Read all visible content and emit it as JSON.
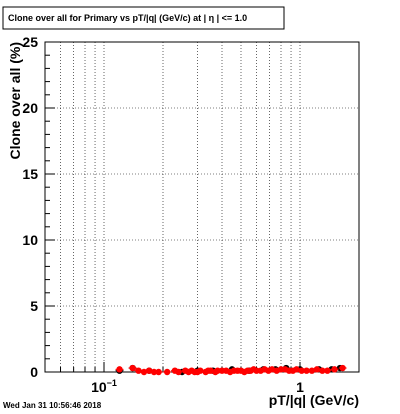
{
  "canvas": {
    "background": "#ffffff"
  },
  "title": {
    "text": "Clone  over all for Primary vs pT/|q| (GeV/c) at |  η | <= 1.0"
  },
  "timestamp": "Wed Jan 31 10:56:46 2018",
  "colors": {
    "primary": "#ff0000",
    "secondary": "#000000",
    "grid": "#000000"
  },
  "chart_data": {
    "type": "scatter",
    "title": "Clone  over all for Primary vs pT/|q| (GeV/c) at |  η | <= 1.0",
    "xlabel": "pT/|q| (GeV/c)",
    "ylabel": "Clone  over all (%)",
    "xscale": "log",
    "xlim": [
      0.05,
      2.0
    ],
    "ylim": [
      0,
      25
    ],
    "grid": true,
    "x_tick_labels": [
      {
        "value": 0.1,
        "label": "10",
        "exponent": "−1"
      },
      {
        "value": 1,
        "label": "1",
        "exponent": ""
      }
    ],
    "y_ticks": [
      {
        "value": 0,
        "label": "0"
      },
      {
        "value": 5,
        "label": "5"
      },
      {
        "value": 10,
        "label": "10"
      },
      {
        "value": 15,
        "label": "15"
      },
      {
        "value": 20,
        "label": "20"
      },
      {
        "value": 25,
        "label": "25"
      }
    ],
    "series": [
      {
        "color": "#000000",
        "marker": "circle",
        "points": [
          {
            "x": 0.12,
            "y": 0.1
          },
          {
            "x": 0.14,
            "y": 0.3
          },
          {
            "x": 0.17,
            "y": 0.1
          },
          {
            "x": 0.25,
            "y": 0.0
          },
          {
            "x": 0.3,
            "y": 0.1
          },
          {
            "x": 0.36,
            "y": 0.1
          },
          {
            "x": 0.45,
            "y": 0.2
          },
          {
            "x": 0.55,
            "y": 0.1
          },
          {
            "x": 0.65,
            "y": 0.2
          },
          {
            "x": 0.75,
            "y": 0.2
          },
          {
            "x": 0.85,
            "y": 0.3
          },
          {
            "x": 1.0,
            "y": 0.2
          },
          {
            "x": 1.25,
            "y": 0.2
          },
          {
            "x": 1.45,
            "y": 0.2
          },
          {
            "x": 1.6,
            "y": 0.3
          }
        ]
      },
      {
        "color": "#ff0000",
        "marker": "circle",
        "points": [
          {
            "x": 0.12,
            "y": 0.2
          },
          {
            "x": 0.14,
            "y": 0.3
          },
          {
            "x": 0.15,
            "y": 0.1
          },
          {
            "x": 0.16,
            "y": 0.0
          },
          {
            "x": 0.17,
            "y": 0.1
          },
          {
            "x": 0.18,
            "y": 0.0
          },
          {
            "x": 0.19,
            "y": 0.0
          },
          {
            "x": 0.21,
            "y": 0.0
          },
          {
            "x": 0.23,
            "y": 0.1
          },
          {
            "x": 0.24,
            "y": 0.0
          },
          {
            "x": 0.26,
            "y": 0.1
          },
          {
            "x": 0.27,
            "y": 0.0
          },
          {
            "x": 0.28,
            "y": 0.1
          },
          {
            "x": 0.29,
            "y": 0.0
          },
          {
            "x": 0.3,
            "y": 0.0
          },
          {
            "x": 0.31,
            "y": 0.1
          },
          {
            "x": 0.33,
            "y": 0.0
          },
          {
            "x": 0.34,
            "y": 0.1
          },
          {
            "x": 0.35,
            "y": 0.1
          },
          {
            "x": 0.37,
            "y": 0.0
          },
          {
            "x": 0.38,
            "y": 0.1
          },
          {
            "x": 0.4,
            "y": 0.1
          },
          {
            "x": 0.42,
            "y": 0.1
          },
          {
            "x": 0.44,
            "y": 0.0
          },
          {
            "x": 0.46,
            "y": 0.1
          },
          {
            "x": 0.48,
            "y": 0.1
          },
          {
            "x": 0.5,
            "y": 0.1
          },
          {
            "x": 0.52,
            "y": 0.0
          },
          {
            "x": 0.54,
            "y": 0.1
          },
          {
            "x": 0.56,
            "y": 0.1
          },
          {
            "x": 0.58,
            "y": 0.2
          },
          {
            "x": 0.6,
            "y": 0.1
          },
          {
            "x": 0.63,
            "y": 0.1
          },
          {
            "x": 0.66,
            "y": 0.2
          },
          {
            "x": 0.69,
            "y": 0.1
          },
          {
            "x": 0.72,
            "y": 0.2
          },
          {
            "x": 0.76,
            "y": 0.1
          },
          {
            "x": 0.8,
            "y": 0.2
          },
          {
            "x": 0.84,
            "y": 0.2
          },
          {
            "x": 0.88,
            "y": 0.1
          },
          {
            "x": 0.92,
            "y": 0.1
          },
          {
            "x": 0.96,
            "y": 0.2
          },
          {
            "x": 1.02,
            "y": 0.1
          },
          {
            "x": 1.08,
            "y": 0.1
          },
          {
            "x": 1.15,
            "y": 0.1
          },
          {
            "x": 1.22,
            "y": 0.2
          },
          {
            "x": 1.3,
            "y": 0.1
          },
          {
            "x": 1.38,
            "y": 0.1
          },
          {
            "x": 1.5,
            "y": 0.2
          },
          {
            "x": 1.65,
            "y": 0.3
          }
        ]
      }
    ]
  }
}
